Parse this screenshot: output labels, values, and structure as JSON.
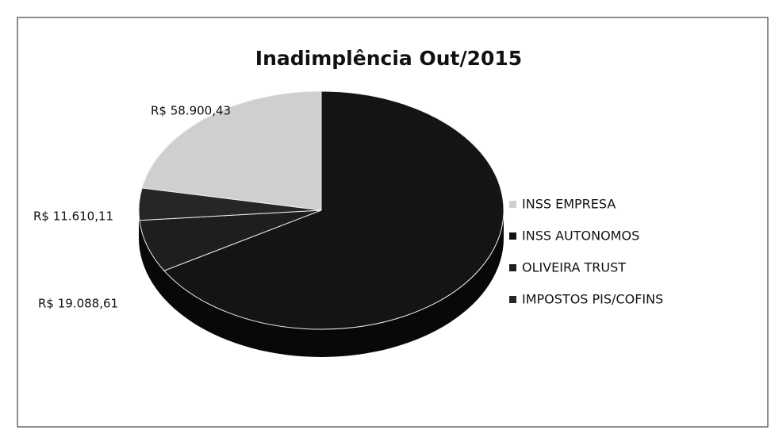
{
  "chart_data": {
    "type": "pie",
    "title": "Inadimplência Out/2015",
    "categories": [
      "INSS EMPRESA",
      "INSS AUTONOMOS",
      "OLIVEIRA TRUST",
      "IMPOSTOS PIS/COFINS"
    ],
    "values": [
      58900.43,
      178000,
      19088.61,
      11610.11
    ],
    "value_labels": [
      "R$ 58.900,43",
      null,
      "R$ 19.088,61",
      "R$ 11.610,11"
    ],
    "colors": [
      "#cfcfcf",
      "#141414",
      "#1e1e1e",
      "#262626"
    ],
    "legend": "right"
  }
}
